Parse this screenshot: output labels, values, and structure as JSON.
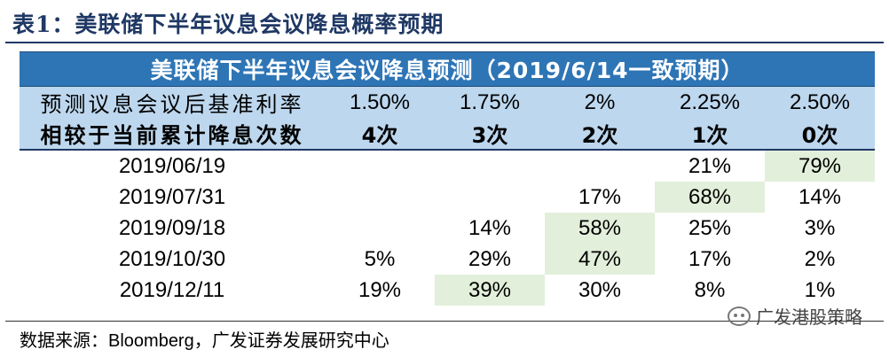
{
  "title": "表1：美联储下半年议息会议降息概率预期",
  "table": {
    "header": "美联储下半年议息会议降息预测（2019/6/14一致预期）",
    "rate_label": "预测议息会议后基准利率",
    "rates": [
      "1.50%",
      "1.75%",
      "2%",
      "2.25%",
      "2.50%"
    ],
    "cut_label": "相较于当前累计降息次数",
    "cuts": [
      "4次",
      "3次",
      "2次",
      "1次",
      "0次"
    ],
    "rows": [
      {
        "date": "2019/06/19",
        "values": [
          "",
          "",
          "",
          "21%",
          "79%"
        ],
        "highlight": 4
      },
      {
        "date": "2019/07/31",
        "values": [
          "",
          "",
          "17%",
          "68%",
          "14%"
        ],
        "highlight": 3
      },
      {
        "date": "2019/09/18",
        "values": [
          "",
          "14%",
          "58%",
          "25%",
          "3%"
        ],
        "highlight": 2
      },
      {
        "date": "2019/10/30",
        "values": [
          "5%",
          "29%",
          "47%",
          "17%",
          "2%"
        ],
        "highlight": 2
      },
      {
        "date": "2019/12/11",
        "values": [
          "19%",
          "39%",
          "30%",
          "8%",
          "1%"
        ],
        "highlight": 1
      }
    ]
  },
  "source": {
    "prefix": "数据来源：",
    "provider": "Bloomberg",
    "suffix": "，广发证券发展研究中心"
  },
  "watermark": {
    "text": "广发港股策略",
    "icon": "wechat-icon"
  },
  "colors": {
    "title": "#1f3864",
    "header_bg": "#2e75b6",
    "subheader_bg": "#bdd7ee",
    "highlight_bg": "#e2efda"
  }
}
